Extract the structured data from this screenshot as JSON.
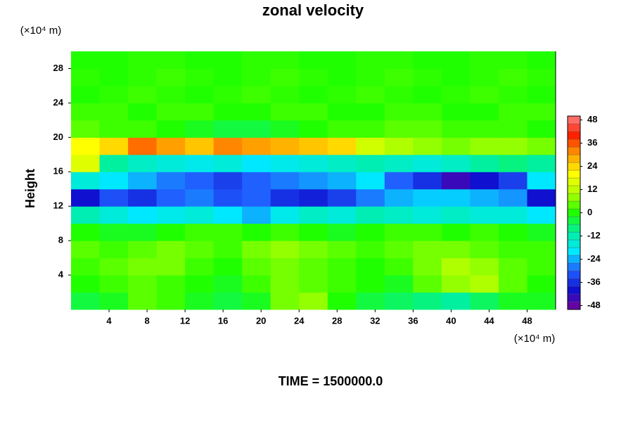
{
  "chart_data": {
    "type": "heatmap",
    "title": "zonal velocity",
    "ylabel": "Height",
    "ylabel_unit": "(×10⁴ m)",
    "xlabel_unit": "(×10⁴ m)",
    "footer": "TIME = 1500000.0",
    "xlim": [
      0,
      51
    ],
    "ylim": [
      0,
      30
    ],
    "xticks": [
      4,
      8,
      12,
      16,
      20,
      24,
      28,
      32,
      36,
      40,
      44,
      48
    ],
    "yticks": [
      4,
      8,
      12,
      16,
      20,
      24,
      28
    ],
    "clim": [
      -50,
      50
    ],
    "cticks": [
      -48,
      -36,
      -24,
      -12,
      0,
      12,
      24,
      36,
      48
    ],
    "colormap": [
      "#7a009a",
      "#1010d0",
      "#2060ff",
      "#00e8ff",
      "#00f0a0",
      "#20ff00",
      "#b0ff00",
      "#ffff00",
      "#ffa000",
      "#ff2000",
      "#ff8080"
    ],
    "x": [
      1.5,
      4.5,
      7.5,
      10.5,
      13.5,
      16.5,
      19.5,
      22.5,
      25.5,
      28.5,
      31.5,
      34.5,
      37.5,
      40.5,
      43.5,
      46.5,
      49.5
    ],
    "y": [
      1,
      3,
      5,
      7,
      9,
      11,
      13,
      15,
      17,
      19,
      21,
      23,
      25,
      27,
      29
    ],
    "z": [
      [
        -4,
        -2,
        4,
        2,
        -2,
        -4,
        -2,
        6,
        8,
        0,
        -4,
        -6,
        -8,
        -10,
        -6,
        -2,
        -2
      ],
      [
        0,
        2,
        4,
        2,
        0,
        -2,
        2,
        6,
        4,
        2,
        0,
        -2,
        4,
        8,
        10,
        4,
        0
      ],
      [
        2,
        4,
        6,
        6,
        2,
        0,
        4,
        6,
        4,
        2,
        0,
        2,
        6,
        10,
        8,
        4,
        2
      ],
      [
        4,
        2,
        4,
        6,
        4,
        2,
        6,
        8,
        6,
        4,
        2,
        4,
        6,
        6,
        4,
        2,
        2
      ],
      [
        0,
        -2,
        -2,
        0,
        2,
        2,
        0,
        2,
        0,
        -2,
        0,
        2,
        2,
        0,
        2,
        0,
        -2
      ],
      [
        -12,
        -16,
        -20,
        -18,
        -16,
        -20,
        -24,
        -18,
        -14,
        -16,
        -12,
        -14,
        -16,
        -14,
        -16,
        -16,
        -20
      ],
      [
        -40,
        -32,
        -36,
        -30,
        -28,
        -32,
        -30,
        -36,
        -38,
        -34,
        -28,
        -24,
        -22,
        -22,
        -24,
        -26,
        -40
      ],
      [
        -16,
        -20,
        -24,
        -28,
        -30,
        -34,
        -30,
        -28,
        -26,
        -24,
        -20,
        -30,
        -36,
        -44,
        -40,
        -34,
        -20
      ],
      [
        16,
        -10,
        -14,
        -16,
        -18,
        -16,
        -20,
        -18,
        -16,
        -14,
        -12,
        -14,
        -16,
        -14,
        -10,
        -8,
        -10
      ],
      [
        20,
        24,
        34,
        30,
        26,
        32,
        30,
        28,
        26,
        24,
        14,
        10,
        8,
        6,
        8,
        8,
        6
      ],
      [
        4,
        2,
        2,
        0,
        -2,
        -4,
        -4,
        -2,
        0,
        2,
        2,
        4,
        4,
        2,
        2,
        2,
        0
      ],
      [
        2,
        2,
        0,
        2,
        2,
        0,
        0,
        2,
        2,
        0,
        0,
        2,
        2,
        0,
        0,
        2,
        2
      ],
      [
        0,
        1,
        2,
        1,
        0,
        1,
        2,
        1,
        0,
        1,
        2,
        1,
        0,
        1,
        2,
        1,
        0
      ],
      [
        1,
        0,
        1,
        2,
        1,
        0,
        1,
        2,
        1,
        0,
        1,
        2,
        1,
        0,
        1,
        2,
        1
      ],
      [
        0,
        0,
        1,
        1,
        0,
        0,
        1,
        1,
        0,
        0,
        1,
        1,
        0,
        0,
        1,
        1,
        0
      ]
    ]
  }
}
